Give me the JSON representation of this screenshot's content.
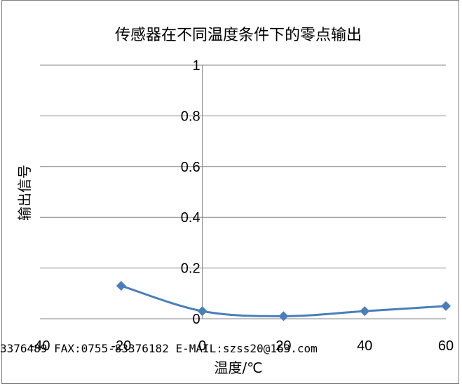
{
  "chart_data": {
    "type": "line",
    "title": "传感器在不同温度条件下的零点输出",
    "xlabel": "温度/℃",
    "ylabel": "输出信号",
    "xlim": [
      -40,
      60
    ],
    "ylim": [
      0,
      1
    ],
    "x_ticks": [
      "-40",
      "-20",
      "0",
      "20",
      "40",
      "60"
    ],
    "y_ticks": [
      "0",
      "0.2",
      "0.4",
      "0.6",
      "0.8",
      "1"
    ],
    "grid": true,
    "series": [
      {
        "x": [
          -20,
          0,
          20,
          40,
          60
        ],
        "y": [
          0.13,
          0.03,
          0.01,
          0.03,
          0.05
        ]
      }
    ],
    "colors": {
      "series": "#4a7ebb",
      "grid": "#868686"
    },
    "marker": "diamond"
  },
  "footer_text": "3376489 FAX:0755-83376182 E-MAIL:szss20@163.com"
}
